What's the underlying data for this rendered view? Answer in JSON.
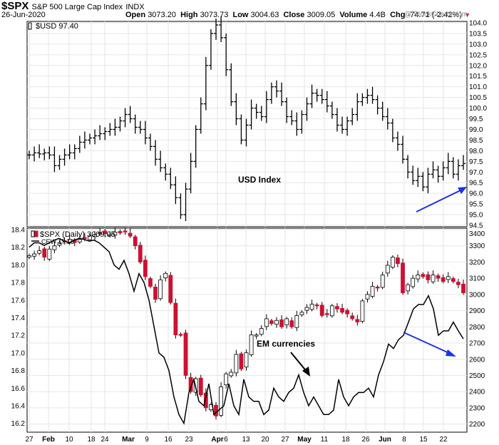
{
  "header": {
    "symbol": "$SPX",
    "name": "S&P 500 Large Cap Index",
    "exchange": "INDX",
    "date": "26-Jun-2020",
    "open_label": "Open",
    "open": "3073.20",
    "high_label": "High",
    "high": "3073.73",
    "low_label": "Low",
    "low": "3004.63",
    "close_label": "Close",
    "close": "3009.05",
    "volume_label": "Volume",
    "volume": "4.4B",
    "chg_label": "Chg",
    "chg": "-74.71 (-2.42%)",
    "chg_arrow": "▼",
    "watermark": "@ StockCharts.com"
  },
  "colors": {
    "up": "#ffffff",
    "down": "#cc1133",
    "line": "#000000",
    "arrow": "#1a33e6",
    "grid": "#e6e6e6"
  },
  "chart_data": [
    {
      "type": "ohlc",
      "legend": "$USD 97.40",
      "annotation": "USD Index",
      "ylim": [
        94.5,
        104.0
      ],
      "yticks": [
        94.5,
        95.0,
        95.5,
        96.0,
        96.5,
        97.0,
        97.5,
        98.0,
        98.5,
        99.0,
        99.5,
        100.0,
        100.5,
        101.0,
        101.5,
        102.0,
        102.5,
        103.0,
        103.5,
        104.0
      ],
      "closes": [
        97.8,
        97.9,
        97.85,
        97.9,
        97.8,
        97.3,
        97.6,
        97.8,
        97.9,
        98.1,
        98.4,
        98.5,
        98.6,
        98.7,
        98.8,
        98.9,
        99.0,
        99.1,
        99.4,
        99.7,
        99.5,
        99.1,
        99.0,
        98.6,
        98.2,
        97.6,
        97.2,
        96.9,
        96.4,
        95.8,
        95.0,
        96.2,
        97.5,
        99.0,
        100.2,
        102.0,
        103.5,
        103.9,
        103.3,
        101.8,
        100.3,
        99.5,
        98.5,
        99.2,
        100.0,
        99.8,
        99.6,
        100.4,
        101.0,
        100.8,
        100.3,
        99.6,
        99.4,
        99.0,
        99.7,
        100.2,
        100.7,
        100.6,
        100.4,
        100.1,
        99.7,
        99.2,
        99.0,
        99.4,
        99.7,
        100.3,
        100.5,
        100.6,
        100.4,
        100.0,
        99.6,
        99.3,
        98.6,
        98.3,
        97.6,
        97.0,
        96.6,
        96.8,
        96.3,
        96.9,
        97.1,
        96.8,
        97.2,
        97.5,
        96.9,
        97.3,
        97.4
      ]
    },
    {
      "type": "candlestick+line",
      "legend_primary": "$SPX (Daily) 3009.05",
      "legend_secondary": "CEW 17.16",
      "annotation": "EM currencies",
      "ylim_right": [
        2150,
        3400
      ],
      "yticks_right": [
        2200,
        2300,
        2400,
        2500,
        2600,
        2700,
        2800,
        2900,
        3000,
        3100,
        3200,
        3300,
        3400
      ],
      "ylim_left": [
        16.1,
        18.4
      ],
      "yticks_left": [
        16.2,
        16.4,
        16.6,
        16.8,
        17.0,
        17.2,
        17.4,
        17.6,
        17.8,
        18.0,
        18.2,
        18.4
      ],
      "spx_closes": [
        3240,
        3250,
        3270,
        3230,
        3280,
        3300,
        3320,
        3330,
        3340,
        3320,
        3340,
        3350,
        3360,
        3370,
        3380,
        3375,
        3370,
        3385,
        3380,
        3390,
        3360,
        3300,
        3200,
        3110,
        3050,
        2970,
        3090,
        3130,
        2950,
        2750,
        2750,
        2500,
        2400,
        2480,
        2380,
        2300,
        2320,
        2250,
        2430,
        2510,
        2520,
        2630,
        2540,
        2640,
        2750,
        2750,
        2790,
        2850,
        2820,
        2840,
        2800,
        2850,
        2800,
        2870,
        2890,
        2920,
        2940,
        2930,
        2870,
        2880,
        2930,
        2910,
        2890,
        2880,
        2850,
        2830,
        2960,
        3000,
        3050,
        3040,
        3120,
        3180,
        3230,
        3190,
        3010,
        3060,
        3100,
        3120,
        3110,
        3090,
        3120,
        3100,
        3080,
        3110,
        3080,
        3060,
        3010
      ]
    }
  ],
  "x_axis": {
    "labels": [
      "27",
      "Feb",
      "10",
      "18",
      "24",
      "Mar",
      "9",
      "16",
      "23",
      "Apr",
      "6",
      "13",
      "20",
      "27",
      "May",
      "11",
      "18",
      "26",
      "Jun",
      "8",
      "15",
      "22"
    ]
  }
}
